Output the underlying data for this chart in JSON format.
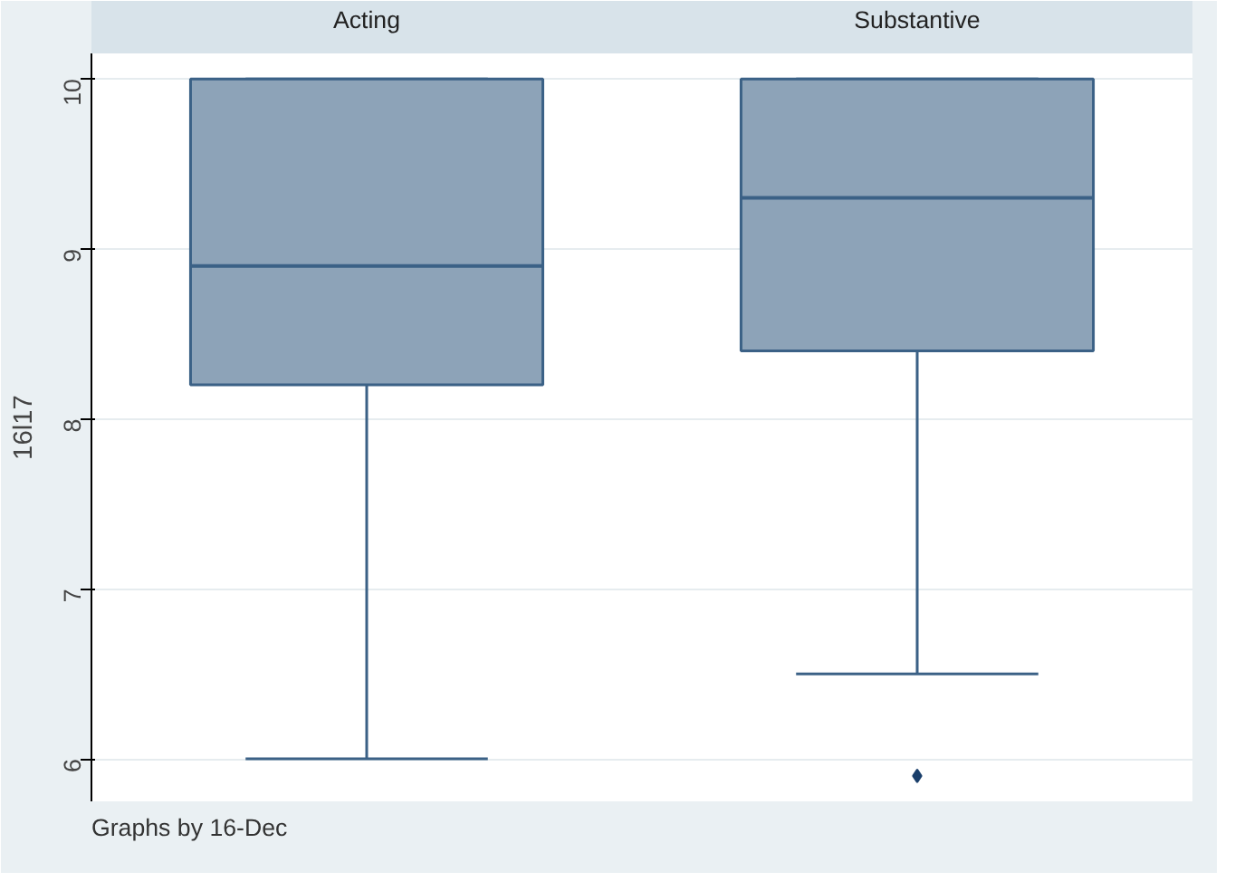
{
  "chart_data": {
    "type": "box",
    "ylabel": "16l17",
    "categories": [
      "Acting",
      "Substantive"
    ],
    "color": "#8da3b8",
    "boxes": [
      {
        "low": 6,
        "q1": 8.2,
        "median": 8.9,
        "q3": 10,
        "high": 10
      },
      {
        "low": 6.5,
        "q1": 8.4,
        "median": 9.3,
        "q3": 10,
        "high": 10,
        "outliers": [
          5.9
        ]
      }
    ],
    "ylim": [
      5.75,
      10.15
    ],
    "yticks": [
      6,
      7,
      8,
      9,
      10
    ],
    "grid": "y",
    "annotations": [
      "Graphs by 16-Dec"
    ]
  }
}
